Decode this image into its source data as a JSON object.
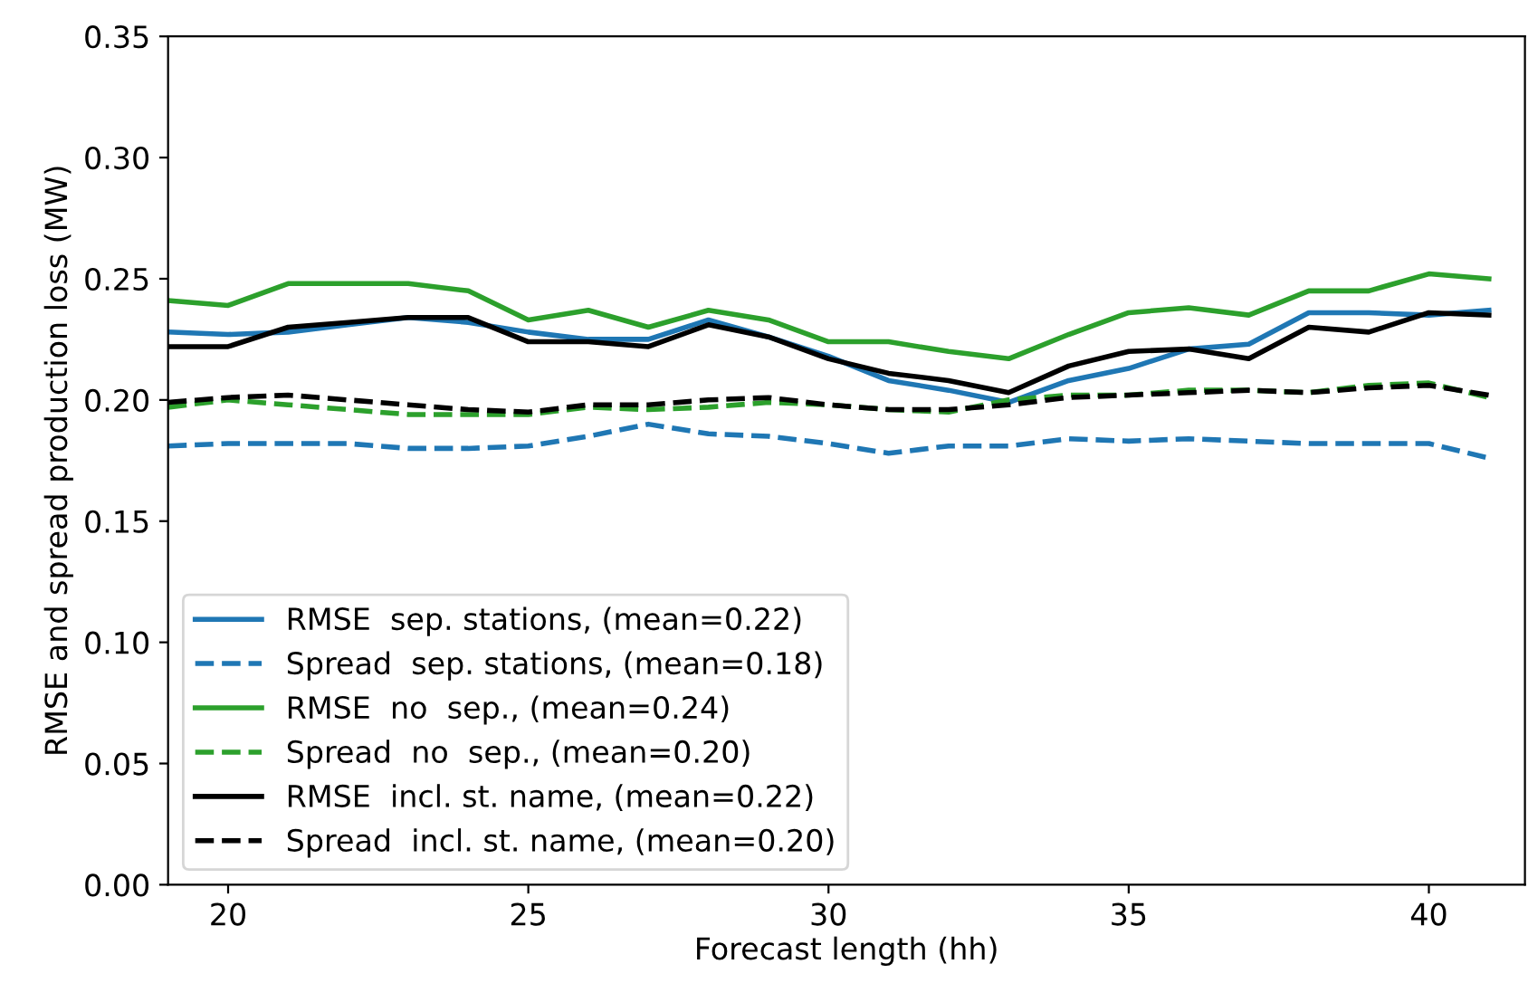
{
  "chart_data": {
    "type": "line",
    "xlabel": "Forecast length (hh)",
    "ylabel": "RMSE and spread production loss (MW)",
    "x": [
      19,
      20,
      21,
      22,
      23,
      24,
      25,
      26,
      27,
      28,
      29,
      30,
      31,
      32,
      33,
      34,
      35,
      36,
      37,
      38,
      39,
      40,
      41
    ],
    "series": [
      {
        "name": "RMSE  sep. stations, (mean=0.22)",
        "color": "#1f77b4",
        "line_style": "solid",
        "values": [
          0.228,
          0.227,
          0.228,
          0.231,
          0.234,
          0.232,
          0.228,
          0.225,
          0.225,
          0.233,
          0.226,
          0.218,
          0.208,
          0.204,
          0.199,
          0.208,
          0.213,
          0.221,
          0.223,
          0.236,
          0.236,
          0.235,
          0.237
        ]
      },
      {
        "name": "Spread  sep. stations, (mean=0.18)",
        "color": "#1f77b4",
        "line_style": "dashed",
        "values": [
          0.181,
          0.182,
          0.182,
          0.182,
          0.18,
          0.18,
          0.181,
          0.185,
          0.19,
          0.186,
          0.185,
          0.182,
          0.178,
          0.181,
          0.181,
          0.184,
          0.183,
          0.184,
          0.183,
          0.182,
          0.182,
          0.182,
          0.176
        ]
      },
      {
        "name": "RMSE  no  sep., (mean=0.24)",
        "color": "#2ca02c",
        "line_style": "solid",
        "values": [
          0.241,
          0.239,
          0.248,
          0.248,
          0.248,
          0.245,
          0.233,
          0.237,
          0.23,
          0.237,
          0.233,
          0.224,
          0.224,
          0.22,
          0.217,
          0.227,
          0.236,
          0.238,
          0.235,
          0.245,
          0.245,
          0.252,
          0.25
        ]
      },
      {
        "name": "Spread  no  sep., (mean=0.20)",
        "color": "#2ca02c",
        "line_style": "dashed",
        "values": [
          0.197,
          0.2,
          0.198,
          0.196,
          0.194,
          0.194,
          0.194,
          0.197,
          0.196,
          0.197,
          0.199,
          0.198,
          0.196,
          0.195,
          0.2,
          0.202,
          0.202,
          0.204,
          0.204,
          0.203,
          0.206,
          0.207,
          0.201
        ]
      },
      {
        "name": "RMSE  incl. st. name, (mean=0.22)",
        "color": "#000000",
        "line_style": "solid",
        "values": [
          0.222,
          0.222,
          0.23,
          0.232,
          0.234,
          0.234,
          0.224,
          0.224,
          0.222,
          0.231,
          0.226,
          0.217,
          0.211,
          0.208,
          0.203,
          0.214,
          0.22,
          0.221,
          0.217,
          0.23,
          0.228,
          0.236,
          0.235
        ]
      },
      {
        "name": "Spread  incl. st. name, (mean=0.20)",
        "color": "#000000",
        "line_style": "dashed",
        "values": [
          0.199,
          0.201,
          0.202,
          0.2,
          0.198,
          0.196,
          0.195,
          0.198,
          0.198,
          0.2,
          0.201,
          0.198,
          0.196,
          0.196,
          0.198,
          0.201,
          0.202,
          0.203,
          0.204,
          0.203,
          0.205,
          0.206,
          0.202
        ]
      }
    ],
    "xlim": [
      19,
      41.6
    ],
    "xticks": [
      20,
      25,
      30,
      35,
      40
    ],
    "ylim": [
      0,
      0.35
    ],
    "yticks": [
      {
        "value": 0,
        "label": "0.00"
      },
      {
        "value": 0.05,
        "label": "0.05"
      },
      {
        "value": 0.1,
        "label": "0.10"
      },
      {
        "value": 0.15,
        "label": "0.15"
      },
      {
        "value": 0.2,
        "label": "0.20"
      },
      {
        "value": 0.25,
        "label": "0.25"
      },
      {
        "value": 0.3,
        "label": "0.30"
      },
      {
        "value": 0.35,
        "label": "0.35"
      }
    ],
    "legend": "bottom left",
    "grid": false
  }
}
